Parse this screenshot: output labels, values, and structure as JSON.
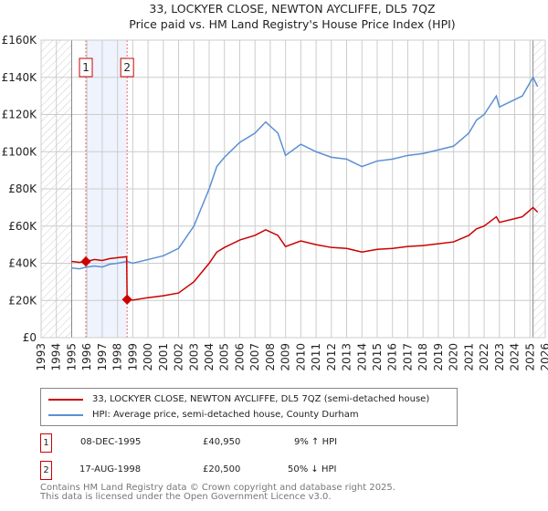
{
  "chart_data": {
    "type": "line",
    "title": "33, LOCKYER CLOSE, NEWTON AYCLIFFE, DL5 7QZ",
    "subtitle": "Price paid vs. HM Land Registry's House Price Index (HPI)",
    "xlim": [
      1993,
      2026
    ],
    "ylim": [
      0,
      160000
    ],
    "x_ticks": [
      "1993",
      "1994",
      "1995",
      "1996",
      "1997",
      "1998",
      "1999",
      "2000",
      "2001",
      "2002",
      "2003",
      "2004",
      "2005",
      "2006",
      "2007",
      "2008",
      "2009",
      "2010",
      "2011",
      "2012",
      "2013",
      "2014",
      "2015",
      "2016",
      "2017",
      "2018",
      "2019",
      "2020",
      "2021",
      "2022",
      "2023",
      "2024",
      "2025",
      "2026"
    ],
    "y_ticks": [
      {
        "v": 0,
        "label": "£0"
      },
      {
        "v": 20000,
        "label": "£20K"
      },
      {
        "v": 40000,
        "label": "£40K"
      },
      {
        "v": 60000,
        "label": "£60K"
      },
      {
        "v": 80000,
        "label": "£80K"
      },
      {
        "v": 100000,
        "label": "£100K"
      },
      {
        "v": 120000,
        "label": "£120K"
      },
      {
        "v": 140000,
        "label": "£140K"
      },
      {
        "v": 160000,
        "label": "£160K"
      }
    ],
    "grid": true,
    "hatched_ranges": [
      [
        1993,
        1995
      ],
      [
        2025.2,
        2026
      ]
    ],
    "shaded_range": [
      1995.93,
      1998.63
    ],
    "series": [
      {
        "name": "33, LOCKYER CLOSE, NEWTON AYCLIFFE, DL5 7QZ (semi-detached house)",
        "color": "#cc0000",
        "x": [
          1995,
          1995.5,
          1995.93,
          1996.5,
          1997,
          1997.5,
          1998,
          1998.6,
          1998.63,
          1999,
          2000,
          2001,
          2002,
          2003,
          2004,
          2004.5,
          2005,
          2006,
          2007,
          2007.7,
          2008.5,
          2009,
          2010,
          2011,
          2012,
          2013,
          2014,
          2015,
          2016,
          2017,
          2018,
          2019,
          2020,
          2021,
          2021.5,
          2022,
          2022.8,
          2023,
          2024,
          2024.5,
          2025.2,
          2025.5
        ],
        "y": [
          41000,
          40500,
          40950,
          42000,
          41500,
          42500,
          43000,
          43500,
          20500,
          20200,
          21500,
          22500,
          24000,
          30000,
          40000,
          46000,
          48500,
          52500,
          55000,
          58000,
          55000,
          49000,
          52000,
          50000,
          48500,
          48000,
          46000,
          47500,
          48000,
          49000,
          49500,
          50500,
          51500,
          55000,
          58500,
          60000,
          65000,
          62000,
          64000,
          65000,
          70000,
          67500
        ]
      },
      {
        "name": "HPI: Average price, semi-detached house, County Durham",
        "color": "#5b8fd4",
        "x": [
          1995,
          1995.5,
          1996,
          1996.5,
          1997,
          1997.5,
          1998,
          1998.63,
          1999,
          2000,
          2001,
          2002,
          2003,
          2004,
          2004.5,
          2005,
          2006,
          2007,
          2007.7,
          2008.5,
          2009,
          2010,
          2011,
          2012,
          2013,
          2014,
          2015,
          2016,
          2017,
          2018,
          2019,
          2020,
          2021,
          2021.5,
          2022,
          2022.8,
          2023,
          2024,
          2024.5,
          2025.2,
          2025.5
        ],
        "y": [
          37500,
          37000,
          38000,
          38500,
          38000,
          39500,
          40000,
          41000,
          40000,
          42000,
          44000,
          48000,
          60000,
          80000,
          92000,
          97000,
          105000,
          110000,
          116000,
          110000,
          98000,
          104000,
          100000,
          97000,
          96000,
          92000,
          95000,
          96000,
          98000,
          99000,
          101000,
          103000,
          110000,
          117000,
          120000,
          130000,
          124000,
          128000,
          130000,
          140000,
          135000
        ]
      }
    ],
    "sales": [
      {
        "label": "1",
        "x": 1995.93,
        "y": 40950
      },
      {
        "label": "2",
        "x": 1998.63,
        "y": 20500
      }
    ]
  },
  "legend": {
    "property": "33, LOCKYER CLOSE, NEWTON AYCLIFFE, DL5 7QZ (semi-detached house)",
    "hpi": "HPI: Average price, semi-detached house, County Durham"
  },
  "transactions": [
    {
      "num": "1",
      "date": "08-DEC-1995",
      "price": "£40,950",
      "hpi": "9% ↑ HPI"
    },
    {
      "num": "2",
      "date": "17-AUG-1998",
      "price": "£20,500",
      "hpi": "50% ↓ HPI"
    }
  ],
  "footer": {
    "line1": "Contains HM Land Registry data © Crown copyright and database right 2025.",
    "line2": "This data is licensed under the Open Government Licence v3.0."
  }
}
